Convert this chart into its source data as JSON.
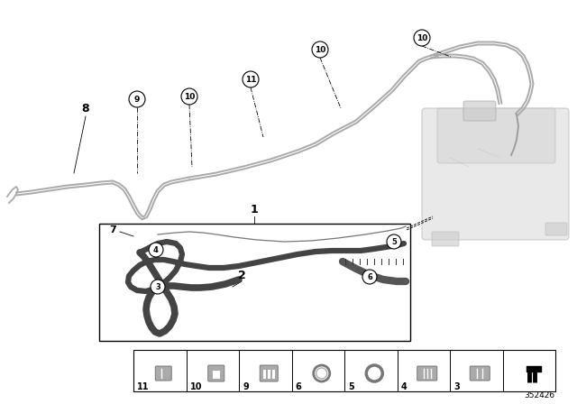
{
  "background_color": "#ffffff",
  "diagram_number": "352426",
  "pipe_color": "#aaaaaa",
  "pipe_color2": "#888888",
  "inner_pipe_color": "#444444",
  "tank_color": "#cccccc",
  "bottom_labels": [
    "11",
    "10",
    "9",
    "6",
    "5",
    "4",
    "3",
    ""
  ]
}
